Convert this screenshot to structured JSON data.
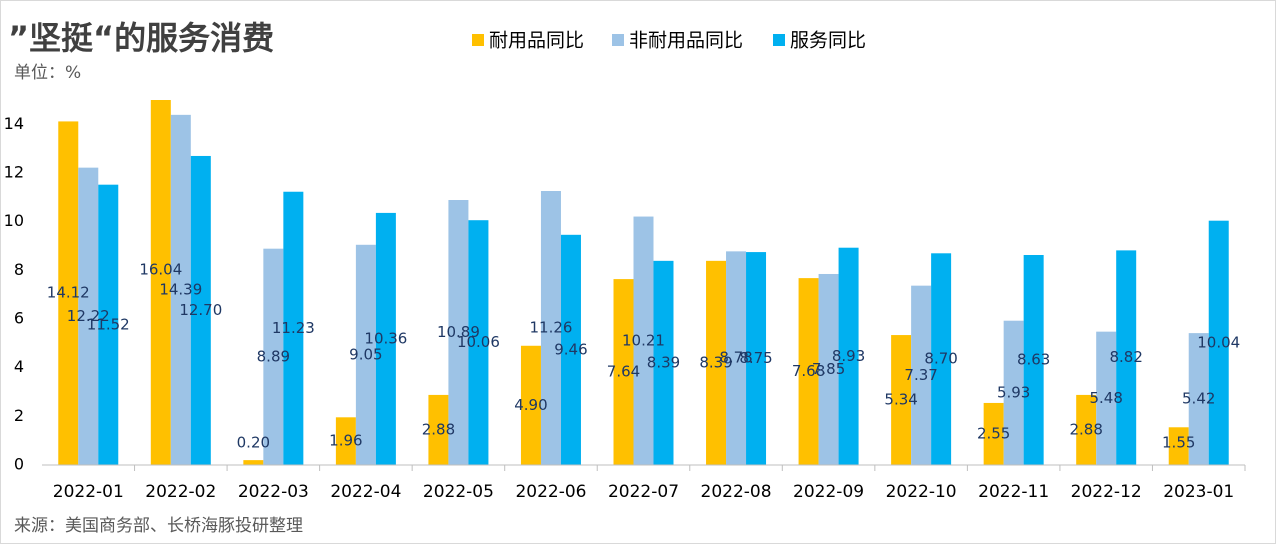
{
  "chart_data": {
    "type": "bar",
    "title": "”坚挺“的服务消费",
    "unit_label": "单位：%",
    "source": "来源：美国商务部、长桥海豚投研整理",
    "categories": [
      "2022-01",
      "2022-02",
      "2022-03",
      "2022-04",
      "2022-05",
      "2022-06",
      "2022-07",
      "2022-08",
      "2022-09",
      "2022-10",
      "2022-11",
      "2022-12",
      "2023-01"
    ],
    "series": [
      {
        "name": "耐用品同比",
        "color": "#FFC000",
        "values": [
          14.12,
          16.04,
          0.2,
          1.96,
          2.88,
          4.9,
          7.64,
          8.39,
          7.68,
          5.34,
          2.55,
          2.88,
          1.55
        ],
        "value_labels": [
          "14.12",
          "16.04",
          "0.20",
          "1.96",
          "2.88",
          "4.90",
          "7.64",
          "8.39",
          "7.68",
          "5.34",
          "2.55",
          "2.88",
          "1.55"
        ]
      },
      {
        "name": "非耐用品同比",
        "color": "#9DC3E6",
        "values": [
          12.22,
          14.39,
          8.89,
          9.05,
          10.89,
          11.26,
          10.21,
          8.78,
          7.85,
          7.37,
          5.93,
          5.48,
          5.42
        ],
        "value_labels": [
          "12.22",
          "14.39",
          "8.89",
          "9.05",
          "10.89",
          "11.26",
          "10.21",
          "8.78",
          "7.85",
          "7.37",
          "5.93",
          "5.48",
          "5.42"
        ]
      },
      {
        "name": "服务同比",
        "color": "#00B0F0",
        "values": [
          11.52,
          12.7,
          11.23,
          10.36,
          10.06,
          9.46,
          8.39,
          8.75,
          8.93,
          8.7,
          8.63,
          8.82,
          10.04
        ],
        "value_labels": [
          "11.52",
          "12.70",
          "11.23",
          "10.36",
          "10.06",
          "9.46",
          "8.39",
          "8.75",
          "8.93",
          "8.70",
          "8.63",
          "8.82",
          "10.04"
        ]
      }
    ],
    "ylim": [
      0,
      15
    ],
    "yticks": [
      0,
      2,
      4,
      6,
      8,
      10,
      12,
      14
    ],
    "grid": false
  }
}
